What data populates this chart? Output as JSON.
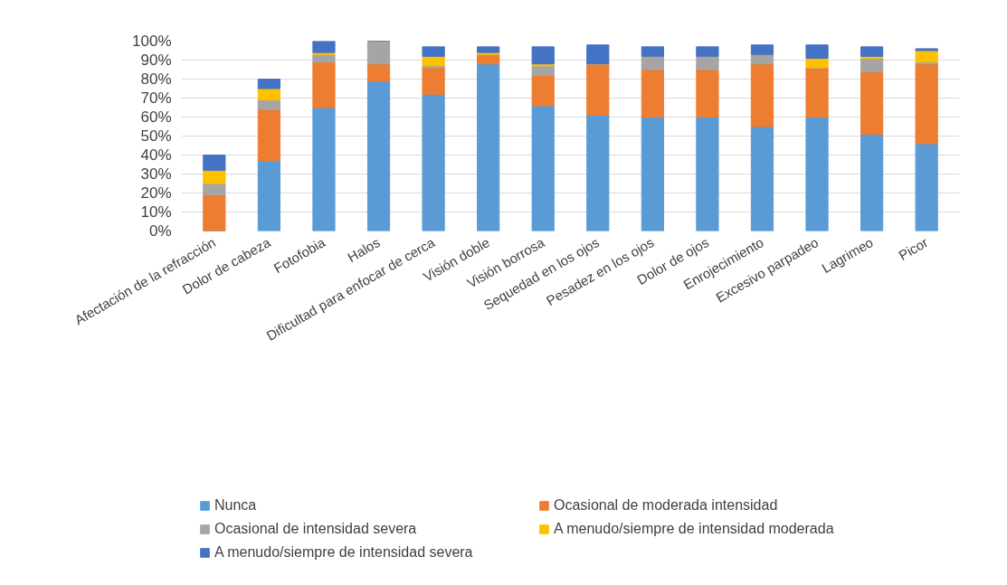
{
  "chart_data": {
    "type": "bar",
    "stacked": true,
    "categories": [
      "Afectación de la refracción",
      "Dolor de cabeza",
      "Fotofobia",
      "Halos",
      "Dificultad para enfocar de cerca",
      "Visión doble",
      "Visión borrosa",
      "Sequedad en los ojos",
      "Pesadez en los ojos",
      "Dolor de ojos",
      "Enrojecimiento",
      "Excesivo parpadeo",
      "Lagrimeo",
      "Picor"
    ],
    "series": [
      {
        "name": "Nunca",
        "color": "#5b9bd5",
        "values": [
          0,
          37,
          65,
          79,
          72,
          88,
          66,
          61,
          60,
          60,
          55,
          60,
          51,
          46
        ]
      },
      {
        "name": "Ocasional de moderada intensidad",
        "color": "#ed7d31",
        "values": [
          19,
          27,
          24,
          9,
          14,
          5,
          16,
          27,
          25,
          25,
          33,
          26,
          33,
          42
        ]
      },
      {
        "name": "Ocasional de intensidad severa",
        "color": "#a5a5a5",
        "values": [
          6,
          5,
          4,
          12,
          1,
          0,
          5,
          0,
          7,
          7,
          5,
          0,
          7,
          1
        ]
      },
      {
        "name": "A menudo/siempre de intensidad moderada",
        "color": "#ffc000",
        "values": [
          7,
          6,
          1,
          0,
          5,
          1,
          1,
          0,
          0,
          0,
          0,
          5,
          1,
          6
        ]
      },
      {
        "name": "A menudo/siempre de intensidad severa",
        "color": "#4472c4",
        "values": [
          8,
          5,
          6,
          0,
          5,
          3,
          9,
          10,
          5,
          5,
          5,
          7,
          5,
          1
        ]
      }
    ],
    "ylim": [
      0,
      100
    ],
    "yticks": [
      {
        "value": 0,
        "label": "0%"
      },
      {
        "value": 10,
        "label": "10%"
      },
      {
        "value": 20,
        "label": "20%"
      },
      {
        "value": 30,
        "label": "30%"
      },
      {
        "value": 40,
        "label": "40%"
      },
      {
        "value": 50,
        "label": "50%"
      },
      {
        "value": 60,
        "label": "60%"
      },
      {
        "value": 70,
        "label": "70%"
      },
      {
        "value": 80,
        "label": "80%"
      },
      {
        "value": 90,
        "label": "90%"
      },
      {
        "value": 100,
        "label": "100%"
      }
    ],
    "grid": "y",
    "legend": "bottom"
  }
}
